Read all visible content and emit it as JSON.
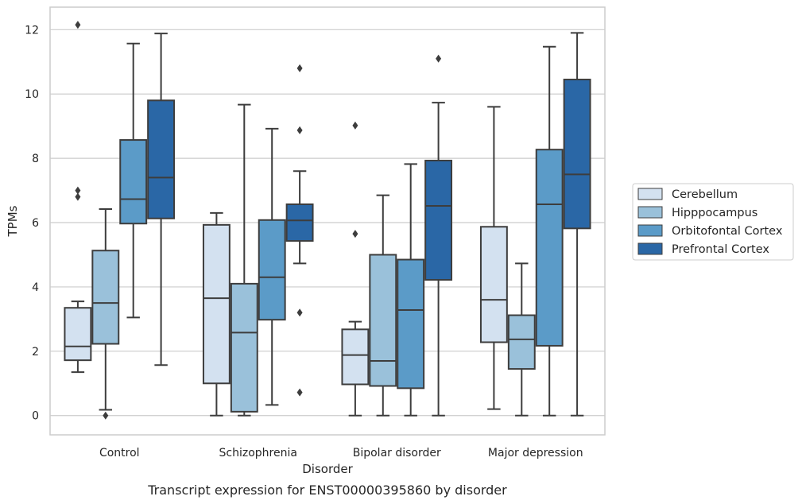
{
  "chart_data": {
    "type": "box",
    "title": "",
    "caption": "Transcript expression for ENST00000395860 by disorder",
    "xlabel": "Disorder",
    "ylabel": "TPMs",
    "ylim": [
      -0.6,
      12.7
    ],
    "yticks": [
      0,
      2,
      4,
      6,
      8,
      10,
      12
    ],
    "grid": "horizontal",
    "legend_position": "right",
    "categories": [
      "Control",
      "Schizophrenia",
      "Bipolar disorder",
      "Major depression"
    ],
    "series": [
      {
        "name": "Cerebellum",
        "color": "#d3e1f0",
        "boxes": [
          {
            "whislo": 1.35,
            "q1": 1.72,
            "med": 2.15,
            "q3": 3.35,
            "whishi": 3.55,
            "fliers": [
              12.15,
              7.0,
              6.8
            ]
          },
          {
            "whislo": 0.0,
            "q1": 1.0,
            "med": 3.65,
            "q3": 5.93,
            "whishi": 6.3,
            "fliers": []
          },
          {
            "whislo": 0.0,
            "q1": 0.97,
            "med": 1.88,
            "q3": 2.68,
            "whishi": 2.92,
            "fliers": [
              9.02,
              5.65
            ]
          },
          {
            "whislo": 0.2,
            "q1": 2.28,
            "med": 3.6,
            "q3": 5.87,
            "whishi": 9.6,
            "fliers": []
          }
        ]
      },
      {
        "name": "Hipppocampus",
        "color": "#9ac1da",
        "boxes": [
          {
            "whislo": 0.18,
            "q1": 2.23,
            "med": 3.5,
            "q3": 5.13,
            "whishi": 6.42,
            "fliers": [
              0.0
            ]
          },
          {
            "whislo": 0.0,
            "q1": 0.12,
            "med": 2.58,
            "q3": 4.1,
            "whishi": 9.67,
            "fliers": []
          },
          {
            "whislo": 0.0,
            "q1": 0.92,
            "med": 1.7,
            "q3": 5.0,
            "whishi": 6.85,
            "fliers": []
          },
          {
            "whislo": 0.0,
            "q1": 1.45,
            "med": 2.37,
            "q3": 3.12,
            "whishi": 4.73,
            "fliers": []
          }
        ]
      },
      {
        "name": "Orbitofontal Cortex",
        "color": "#5b9bc8",
        "boxes": [
          {
            "whislo": 3.05,
            "q1": 5.97,
            "med": 6.73,
            "q3": 8.57,
            "whishi": 11.57,
            "fliers": []
          },
          {
            "whislo": 0.33,
            "q1": 2.98,
            "med": 4.3,
            "q3": 6.08,
            "whishi": 8.92,
            "fliers": []
          },
          {
            "whislo": 0.0,
            "q1": 0.85,
            "med": 3.28,
            "q3": 4.85,
            "whishi": 7.82,
            "fliers": []
          },
          {
            "whislo": 0.0,
            "q1": 2.17,
            "med": 6.57,
            "q3": 8.27,
            "whishi": 11.47,
            "fliers": []
          }
        ]
      },
      {
        "name": "Prefrontal Cortex",
        "color": "#2a67a6",
        "boxes": [
          {
            "whislo": 1.57,
            "q1": 6.13,
            "med": 7.4,
            "q3": 9.8,
            "whishi": 11.88,
            "fliers": []
          },
          {
            "whislo": 4.73,
            "q1": 5.43,
            "med": 6.07,
            "q3": 6.57,
            "whishi": 7.6,
            "fliers": [
              10.8,
              8.87,
              3.2,
              0.72
            ]
          },
          {
            "whislo": 0.0,
            "q1": 4.22,
            "med": 6.52,
            "q3": 7.93,
            "whishi": 9.73,
            "fliers": [
              11.1
            ]
          },
          {
            "whislo": 0.0,
            "q1": 5.82,
            "med": 7.5,
            "q3": 10.45,
            "whishi": 11.9,
            "fliers": []
          }
        ]
      }
    ]
  }
}
